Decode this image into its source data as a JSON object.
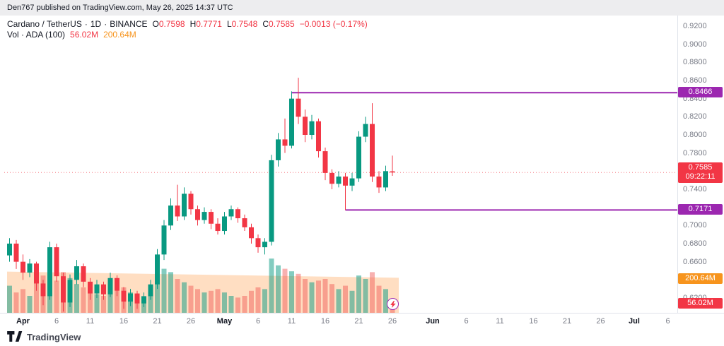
{
  "header": {
    "published_line": "Den767 published on TradingView.com, May 26, 2025 14:37 UTC"
  },
  "legend": {
    "symbol": "Cardano / TetherUS",
    "separator": "·",
    "interval": "1D",
    "exchange": "BINANCE",
    "open_label": "O",
    "open": "0.7598",
    "high_label": "H",
    "high": "0.7771",
    "low_label": "L",
    "low": "0.7548",
    "close_label": "C",
    "close": "0.7585",
    "change": "−0.0013 (−0.17%)",
    "volume_label": "Vol · ADA (100)",
    "volume_value": "56.02M",
    "volume_ma_value": "200.64M"
  },
  "price_scale": {
    "labels": [
      "0.9200",
      "0.9000",
      "0.8800",
      "0.8600",
      "0.8400",
      "0.8200",
      "0.8000",
      "0.7800",
      "0.7600",
      "0.7400",
      "0.7200",
      "0.7000",
      "0.6800",
      "0.6600",
      "0.6400",
      "0.6200"
    ],
    "current_price": "0.7585",
    "countdown": "09:22:11",
    "level_high": "0.8466",
    "level_low": "0.7171",
    "volume_ma_badge": "200.64M",
    "volume_badge": "56.02M"
  },
  "time_scale": {
    "labels": [
      [
        "Apr",
        2,
        1
      ],
      [
        "6",
        7,
        0
      ],
      [
        "11",
        12,
        0
      ],
      [
        "16",
        17,
        0
      ],
      [
        "21",
        22,
        0
      ],
      [
        "26",
        27,
        0
      ],
      [
        "May",
        32,
        1
      ],
      [
        "6",
        37,
        0
      ],
      [
        "11",
        42,
        0
      ],
      [
        "16",
        47,
        0
      ],
      [
        "21",
        52,
        0
      ],
      [
        "26",
        57,
        0
      ],
      [
        "Jun",
        63,
        1
      ],
      [
        "6",
        68,
        0
      ],
      [
        "11",
        73,
        0
      ],
      [
        "16",
        78,
        0
      ],
      [
        "21",
        83,
        0
      ],
      [
        "26",
        88,
        0
      ],
      [
        "Jul",
        93,
        1
      ],
      [
        "6",
        98,
        0
      ]
    ]
  },
  "footer": {
    "brand": "TradingView"
  },
  "colors": {
    "up": "#089981",
    "down": "#f23645",
    "level_purple": "#9c27b0",
    "badge_orange": "#f7941d",
    "axis_text": "#787b86",
    "volume_up": "rgba(8,153,129,0.5)",
    "volume_down": "rgba(239,83,80,0.45)",
    "volume_ma_area": "rgba(255,160,80,0.35)"
  },
  "chart_data": {
    "type": "candlestick",
    "title": "Cardano / TetherUS · 1D · BINANCE",
    "interval": "1D",
    "current_price": 0.7585,
    "last_bar": {
      "open": 0.7598,
      "high": 0.7771,
      "low": 0.7548,
      "close": 0.7585,
      "change": -0.0013,
      "change_pct": -0.17
    },
    "price_axis": {
      "min": 0.62,
      "max": 0.92,
      "step": 0.02
    },
    "levels": [
      {
        "price": 0.8466,
        "from_index": 42
      },
      {
        "price": 0.7171,
        "from_index": 50
      }
    ],
    "volume": {
      "current_m": 56.02,
      "ma100_m": 200.64,
      "ma_band_start_m": 243,
      "ma_band_end_m": 207
    },
    "columns": [
      "open",
      "high",
      "low",
      "close",
      "volume_m"
    ],
    "dates": [
      "Mar 30",
      "Mar 31",
      "Apr 1",
      "Apr 2",
      "Apr 3",
      "Apr 4",
      "Apr 5",
      "Apr 6",
      "Apr 7",
      "Apr 8",
      "Apr 9",
      "Apr 10",
      "Apr 11",
      "Apr 12",
      "Apr 13",
      "Apr 14",
      "Apr 15",
      "Apr 16",
      "Apr 17",
      "Apr 18",
      "Apr 19",
      "Apr 20",
      "Apr 21",
      "Apr 22",
      "Apr 23",
      "Apr 24",
      "Apr 25",
      "Apr 26",
      "Apr 27",
      "Apr 28",
      "Apr 29",
      "Apr 30",
      "May 1",
      "May 2",
      "May 3",
      "May 4",
      "May 5",
      "May 6",
      "May 7",
      "May 8",
      "May 9",
      "May 10",
      "May 11",
      "May 12",
      "May 13",
      "May 14",
      "May 15",
      "May 16",
      "May 17",
      "May 18",
      "May 19",
      "May 20",
      "May 21",
      "May 22",
      "May 23",
      "May 24",
      "May 25",
      "May 26"
    ],
    "candles": [
      [
        0.667,
        0.686,
        0.66,
        0.68,
        160
      ],
      [
        0.68,
        0.684,
        0.652,
        0.66,
        120
      ],
      [
        0.66,
        0.668,
        0.64,
        0.648,
        140
      ],
      [
        0.648,
        0.663,
        0.643,
        0.658,
        100
      ],
      [
        0.658,
        0.66,
        0.628,
        0.636,
        180
      ],
      [
        0.636,
        0.64,
        0.612,
        0.622,
        220
      ],
      [
        0.622,
        0.682,
        0.618,
        0.676,
        255
      ],
      [
        0.676,
        0.68,
        0.638,
        0.644,
        190
      ],
      [
        0.644,
        0.648,
        0.605,
        0.615,
        240
      ],
      [
        0.615,
        0.646,
        0.61,
        0.64,
        205
      ],
      [
        0.64,
        0.662,
        0.635,
        0.655,
        170
      ],
      [
        0.655,
        0.658,
        0.632,
        0.638,
        150
      ],
      [
        0.638,
        0.642,
        0.618,
        0.625,
        160
      ],
      [
        0.625,
        0.64,
        0.62,
        0.635,
        110
      ],
      [
        0.635,
        0.638,
        0.618,
        0.624,
        100
      ],
      [
        0.624,
        0.648,
        0.621,
        0.642,
        140
      ],
      [
        0.642,
        0.645,
        0.622,
        0.628,
        130
      ],
      [
        0.628,
        0.632,
        0.608,
        0.616,
        150
      ],
      [
        0.616,
        0.63,
        0.611,
        0.625,
        120
      ],
      [
        0.625,
        0.628,
        0.608,
        0.614,
        100
      ],
      [
        0.614,
        0.626,
        0.61,
        0.622,
        90
      ],
      [
        0.622,
        0.64,
        0.618,
        0.635,
        110
      ],
      [
        0.635,
        0.674,
        0.63,
        0.668,
        230
      ],
      [
        0.668,
        0.706,
        0.662,
        0.7,
        260
      ],
      [
        0.7,
        0.73,
        0.695,
        0.722,
        240
      ],
      [
        0.722,
        0.745,
        0.705,
        0.71,
        200
      ],
      [
        0.71,
        0.742,
        0.706,
        0.735,
        180
      ],
      [
        0.735,
        0.738,
        0.712,
        0.718,
        160
      ],
      [
        0.718,
        0.722,
        0.7,
        0.706,
        140
      ],
      [
        0.706,
        0.72,
        0.702,
        0.715,
        120
      ],
      [
        0.715,
        0.718,
        0.696,
        0.702,
        130
      ],
      [
        0.702,
        0.708,
        0.69,
        0.694,
        140
      ],
      [
        0.694,
        0.715,
        0.69,
        0.71,
        120
      ],
      [
        0.71,
        0.722,
        0.706,
        0.718,
        100
      ],
      [
        0.718,
        0.72,
        0.703,
        0.708,
        90
      ],
      [
        0.708,
        0.712,
        0.694,
        0.698,
        100
      ],
      [
        0.698,
        0.702,
        0.68,
        0.686,
        130
      ],
      [
        0.686,
        0.69,
        0.67,
        0.676,
        150
      ],
      [
        0.676,
        0.686,
        0.668,
        0.682,
        140
      ],
      [
        0.682,
        0.778,
        0.678,
        0.772,
        320
      ],
      [
        0.772,
        0.802,
        0.765,
        0.795,
        280
      ],
      [
        0.795,
        0.818,
        0.78,
        0.788,
        260
      ],
      [
        0.788,
        0.848,
        0.785,
        0.84,
        245
      ],
      [
        0.84,
        0.863,
        0.812,
        0.82,
        230
      ],
      [
        0.82,
        0.828,
        0.792,
        0.8,
        200
      ],
      [
        0.8,
        0.822,
        0.795,
        0.815,
        180
      ],
      [
        0.815,
        0.818,
        0.775,
        0.782,
        190
      ],
      [
        0.782,
        0.786,
        0.75,
        0.758,
        200
      ],
      [
        0.758,
        0.762,
        0.74,
        0.746,
        170
      ],
      [
        0.746,
        0.76,
        0.742,
        0.754,
        140
      ],
      [
        0.754,
        0.758,
        0.7171,
        0.744,
        160
      ],
      [
        0.744,
        0.758,
        0.738,
        0.752,
        130
      ],
      [
        0.752,
        0.804,
        0.748,
        0.798,
        220
      ],
      [
        0.798,
        0.82,
        0.792,
        0.812,
        200
      ],
      [
        0.812,
        0.835,
        0.748,
        0.754,
        240
      ],
      [
        0.754,
        0.76,
        0.736,
        0.742,
        160
      ],
      [
        0.742,
        0.766,
        0.738,
        0.76,
        140
      ],
      [
        0.7598,
        0.7771,
        0.7548,
        0.7585,
        56.02
      ]
    ]
  }
}
